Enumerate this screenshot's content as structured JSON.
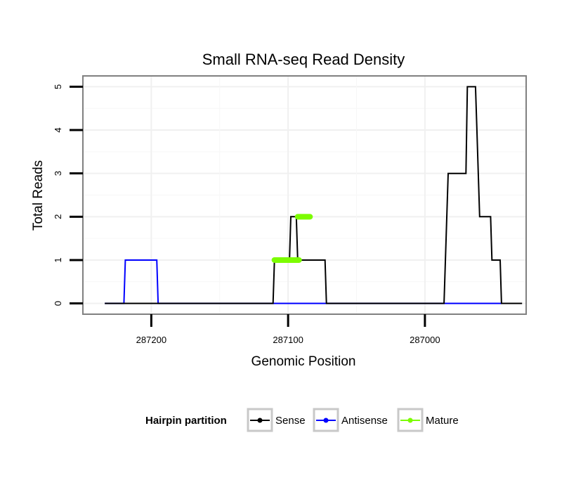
{
  "chart_data": {
    "type": "line",
    "title": "Small RNA-seq Read Density",
    "xlabel": "Genomic Position",
    "ylabel": "Total Reads",
    "x_reversed": true,
    "xlim": [
      287250,
      286926
    ],
    "ylim": [
      -0.25,
      5.25
    ],
    "x_ticks": [
      287200,
      287100,
      287000
    ],
    "x_tick_labels": [
      "287200",
      "287100",
      "287000"
    ],
    "y_ticks": [
      0,
      1,
      2,
      3,
      4,
      5
    ],
    "y_tick_labels": [
      "0",
      "1",
      "2",
      "3",
      "4",
      "5"
    ],
    "grid": true,
    "legend": {
      "title": "Hairpin partition",
      "position": "bottom",
      "entries": [
        "Sense",
        "Antisense",
        "Mature"
      ]
    },
    "series": [
      {
        "name": "Sense",
        "color": "#000000",
        "points": [
          [
            287234,
            0
          ],
          [
            287111,
            0
          ],
          [
            287110,
            1
          ],
          [
            287100,
            1
          ],
          [
            287099,
            1
          ],
          [
            287098,
            2
          ],
          [
            287094,
            2
          ],
          [
            287093,
            1
          ],
          [
            287073,
            1
          ],
          [
            287072,
            0
          ],
          [
            286986,
            0
          ],
          [
            286983,
            3
          ],
          [
            286970,
            3
          ],
          [
            286969,
            5
          ],
          [
            286963,
            5
          ],
          [
            286962,
            4
          ],
          [
            286960,
            2
          ],
          [
            286952,
            2
          ],
          [
            286951,
            1
          ],
          [
            286945,
            1
          ],
          [
            286944,
            0
          ],
          [
            286929,
            0
          ]
        ]
      },
      {
        "name": "Antisense",
        "color": "#0000ff",
        "points": [
          [
            287234,
            0
          ],
          [
            287220,
            0
          ],
          [
            287219,
            1
          ],
          [
            287196,
            1
          ],
          [
            287195,
            0
          ],
          [
            286944,
            0
          ]
        ]
      },
      {
        "name": "Mature",
        "color": "#7cfc00",
        "segments": [
          [
            [
              287110,
              1
            ],
            [
              287092,
              1
            ]
          ],
          [
            [
              287093,
              2
            ],
            [
              287084,
              2
            ]
          ]
        ]
      }
    ]
  }
}
